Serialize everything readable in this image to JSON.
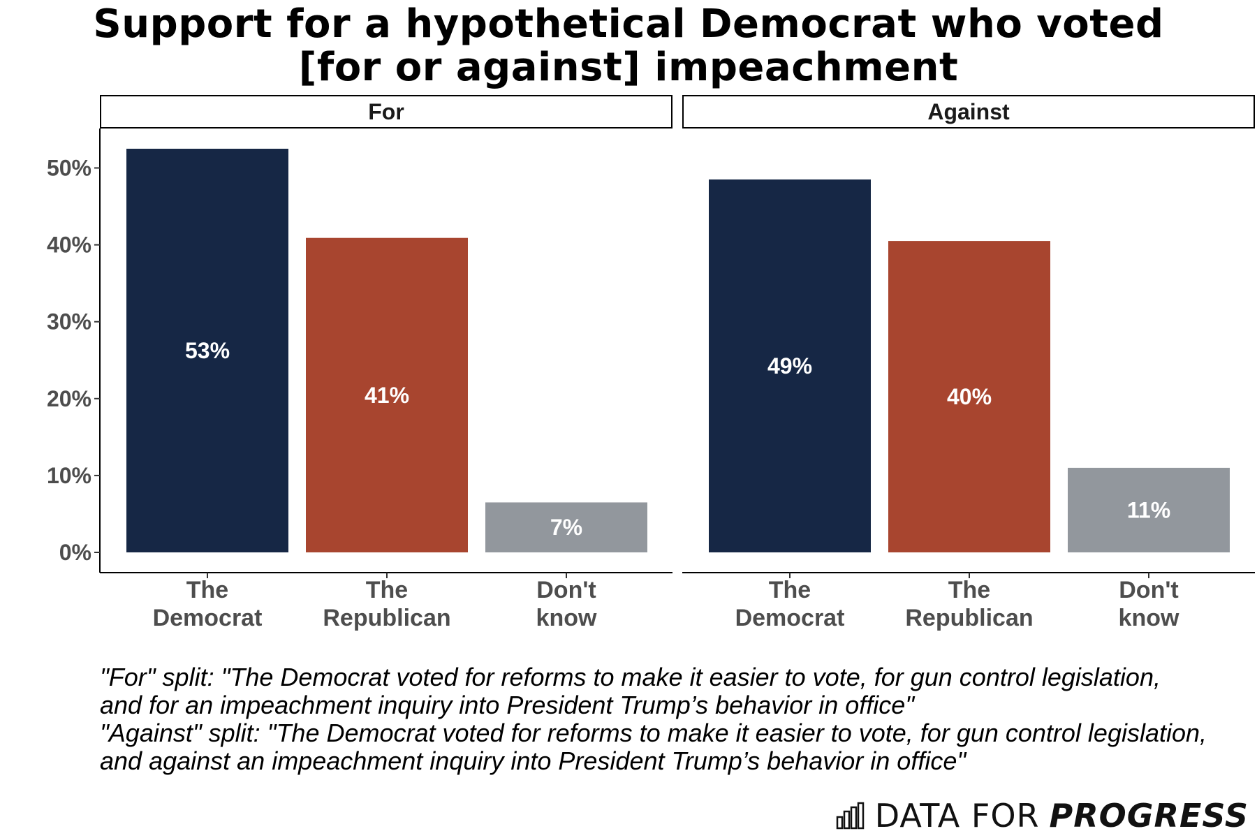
{
  "chart_data": {
    "type": "bar",
    "title_lines": [
      "Support for a hypothetical Democrat who voted",
      "[for or against] impeachment"
    ],
    "ylim": [
      0,
      0.55
    ],
    "y_ticks": [
      0,
      0.1,
      0.2,
      0.3,
      0.4,
      0.5
    ],
    "y_tick_labels": [
      "0%",
      "10%",
      "20%",
      "30%",
      "40%",
      "50%"
    ],
    "categories": [
      [
        "The",
        "Democrat"
      ],
      [
        "The",
        "Republican"
      ],
      [
        "Don't",
        "know"
      ]
    ],
    "colors": [
      "#162745",
      "#a8452f",
      "#92979d"
    ],
    "panels": [
      {
        "label": "For",
        "values": [
          0.525,
          0.409,
          0.065
        ],
        "labels": [
          "53%",
          "41%",
          "7%"
        ]
      },
      {
        "label": "Against",
        "values": [
          0.485,
          0.405,
          0.11
        ],
        "labels": [
          "49%",
          "40%",
          "11%"
        ]
      }
    ]
  },
  "footnote": [
    "\"For\" split: \"The Democrat voted for reforms to make it easier to vote, for gun control legislation,",
    "and for an impeachment inquiry into President Trump’s behavior in office\"",
    "\"Against\" split: \"The Democrat voted for reforms to make it easier to vote, for gun control legislation,",
    "and against an impeachment inquiry into President Trump’s behavior in office\""
  ],
  "brand": {
    "light": "DATA FOR",
    "bold": "PROGRESS",
    "icon": "bar-chart-icon"
  }
}
